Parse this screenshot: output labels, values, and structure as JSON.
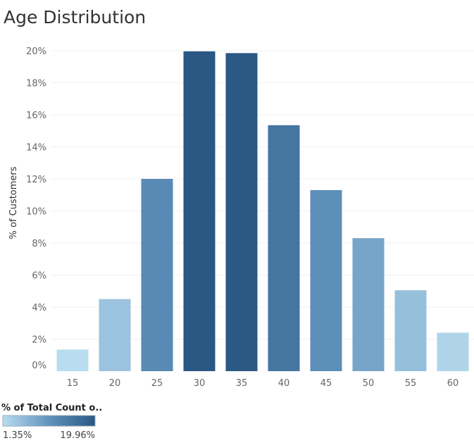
{
  "chart_data": {
    "type": "bar",
    "title": "Age Distribution",
    "ylabel": "% of Customers",
    "xlabel": "",
    "categories": [
      "15",
      "20",
      "25",
      "30",
      "35",
      "40",
      "45",
      "50",
      "55",
      "60"
    ],
    "values": [
      1.35,
      4.5,
      12.0,
      19.96,
      19.85,
      15.35,
      11.3,
      8.3,
      5.05,
      2.4
    ],
    "ylim": [
      0,
      20
    ],
    "y_ticks": [
      0,
      2,
      4,
      6,
      8,
      10,
      12,
      14,
      16,
      18,
      20
    ],
    "y_tick_labels": [
      "0%",
      "2%",
      "4%",
      "6%",
      "8%",
      "10%",
      "12%",
      "14%",
      "16%",
      "18%",
      "20%"
    ],
    "grid": true,
    "color_scale": {
      "low_color": "#b9dcf0",
      "mid_color": "#6093bd",
      "high_color": "#2a5783"
    },
    "legend": {
      "placement": "bottom-left",
      "title": "% of Total Count o..",
      "min_label": "1.35%",
      "max_label": "19.96%"
    }
  }
}
